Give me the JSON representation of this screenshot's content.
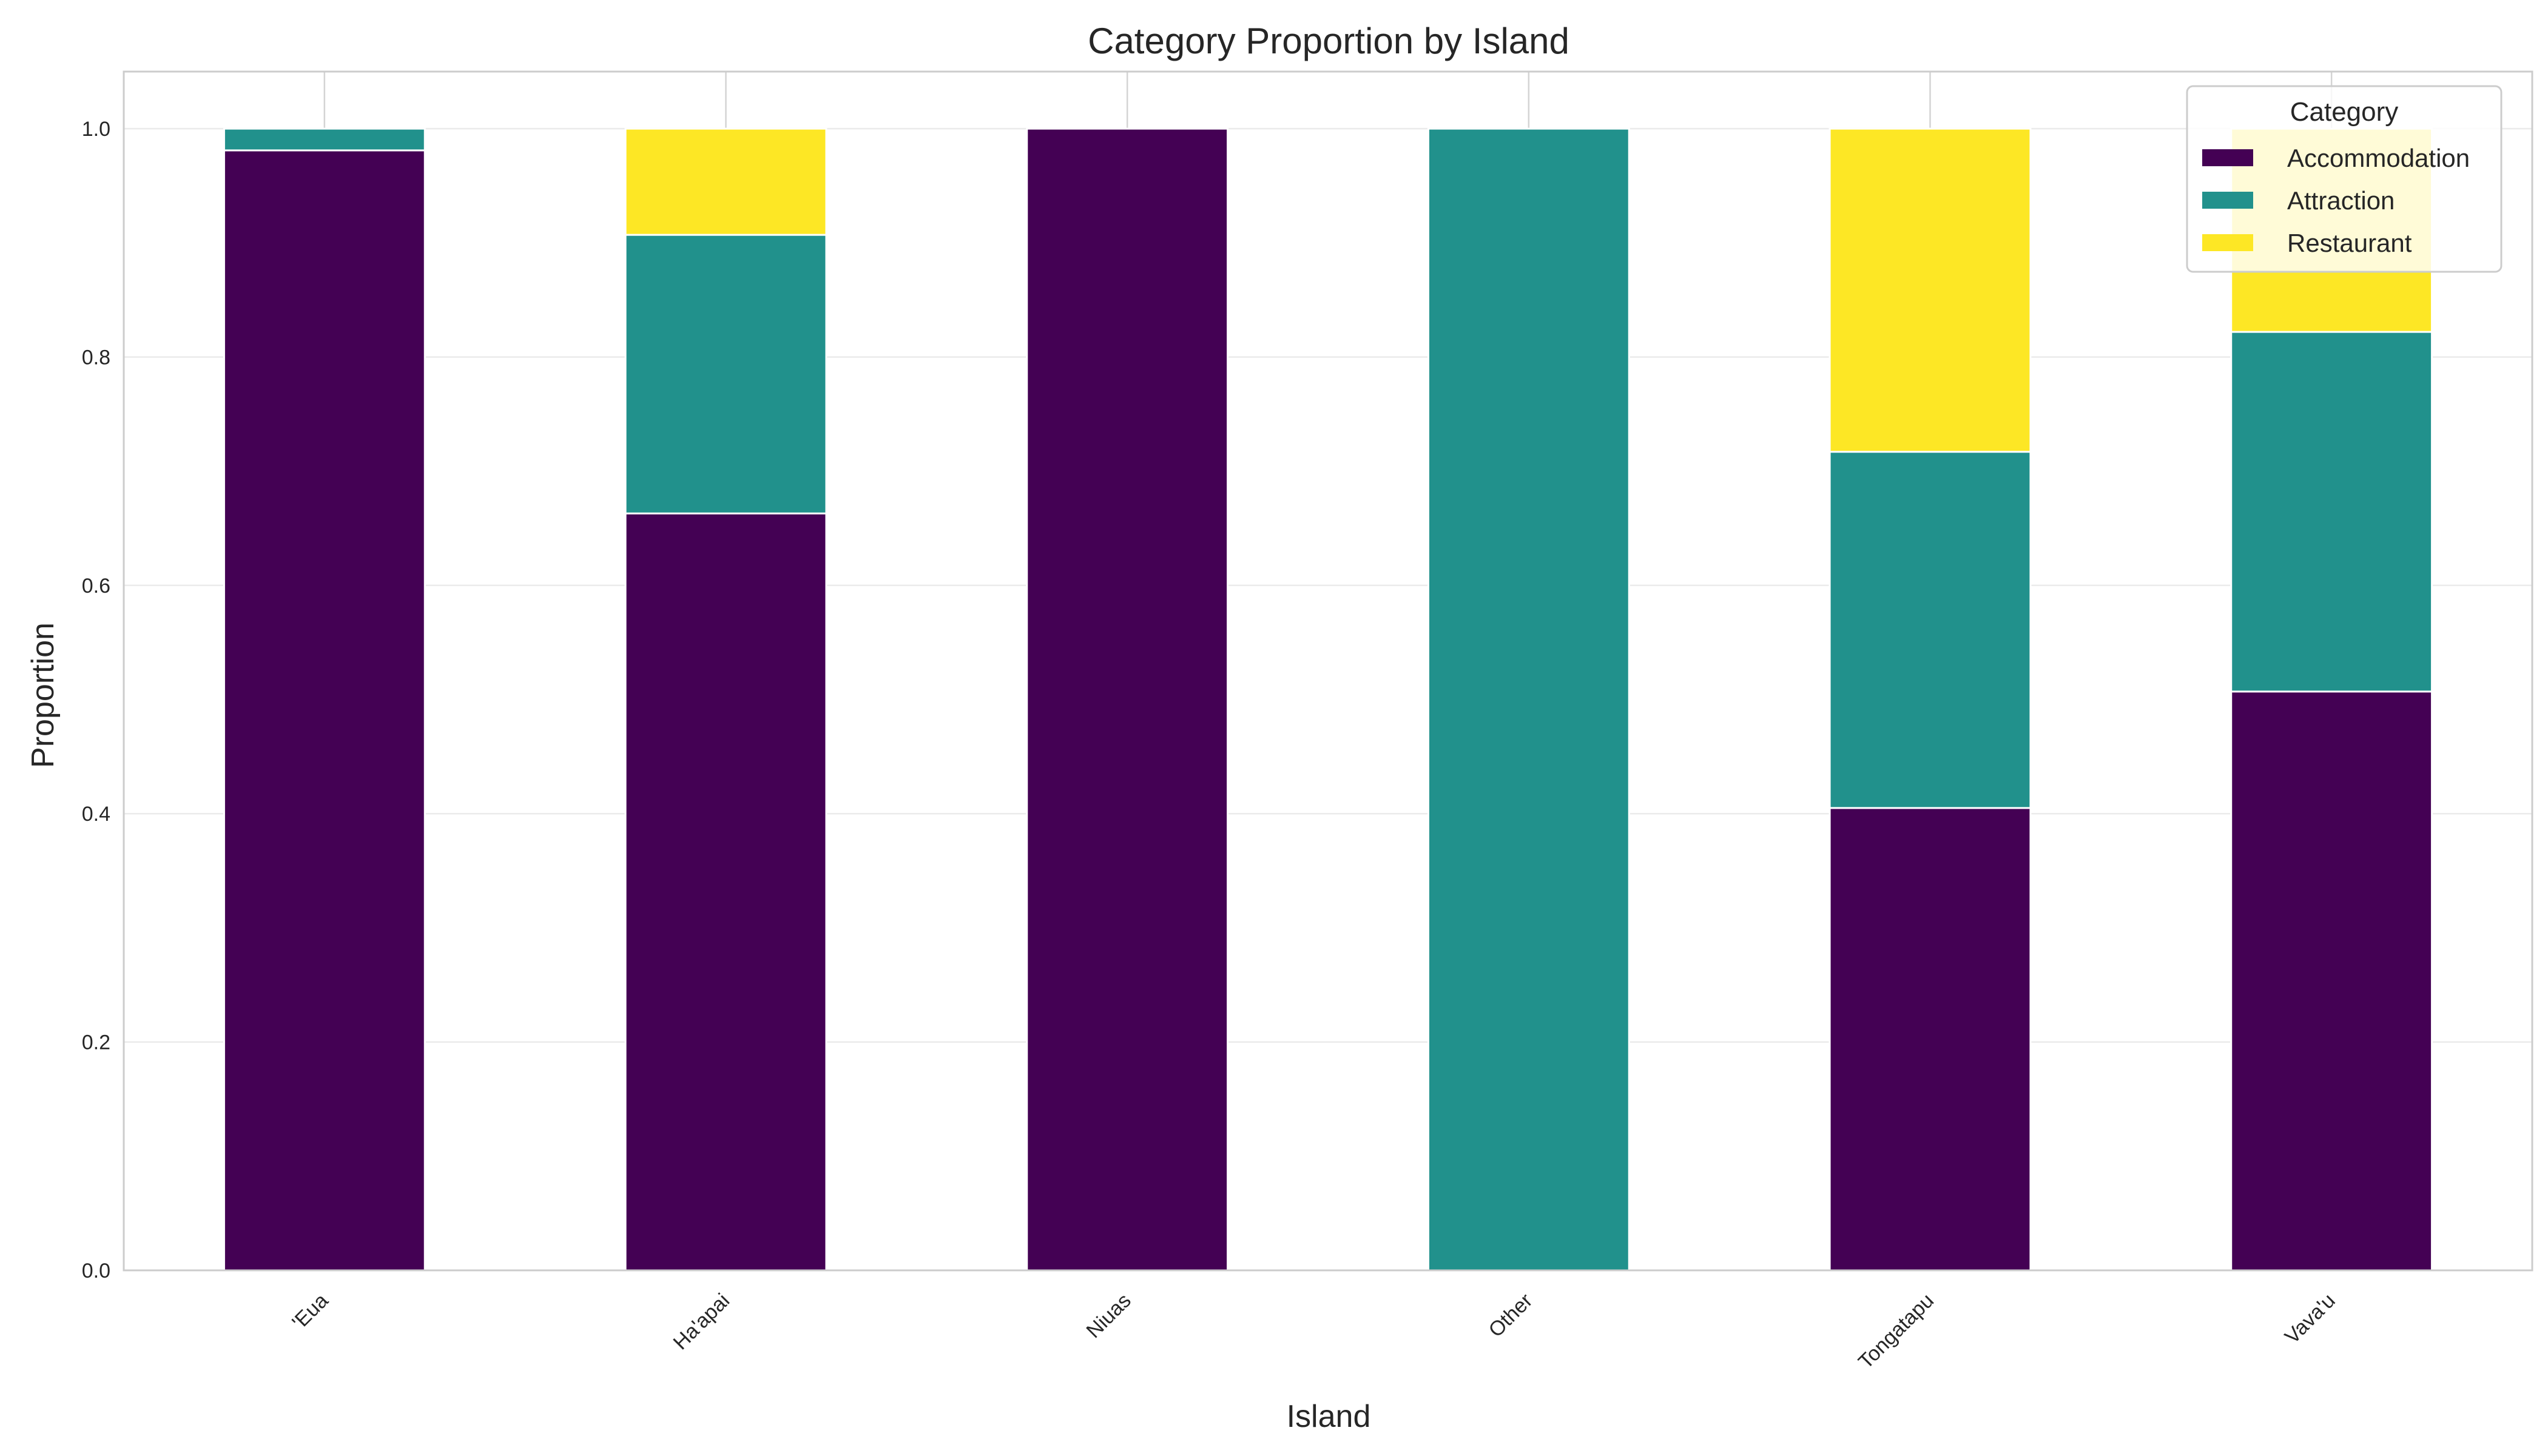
{
  "chart_data": {
    "type": "bar",
    "stacked": true,
    "title": "Category Proportion by Island",
    "xlabel": "Island",
    "ylabel": "Proportion",
    "ylim": [
      0,
      1.05
    ],
    "yticks": [
      "0.0",
      "0.2",
      "0.4",
      "0.6",
      "0.8",
      "1.0"
    ],
    "grid": true,
    "categories": [
      "'Eua",
      "Ha'apai",
      "Niuas",
      "Other",
      "Tongatapu",
      "Vava'u"
    ],
    "series": [
      {
        "name": "Accommodation",
        "color": "#440154",
        "values": [
          0.981,
          0.663,
          1.0,
          0.0,
          0.405,
          0.507
        ]
      },
      {
        "name": "Attraction",
        "color": "#21918c",
        "values": [
          0.019,
          0.244,
          0.0,
          1.0,
          0.312,
          0.315
        ]
      },
      {
        "name": "Restaurant",
        "color": "#fde725",
        "values": [
          0.0,
          0.093,
          0.0,
          0.0,
          0.283,
          0.178
        ]
      }
    ],
    "legend": {
      "title": "Category",
      "placement": "top-right"
    }
  }
}
